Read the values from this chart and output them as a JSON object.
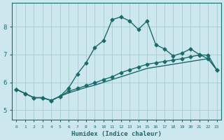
{
  "xlabel": "Humidex (Indice chaleur)",
  "ylabel": "",
  "bg_color": "#cce8ee",
  "grid_color": "#aacccc",
  "line_color": "#1a6b6b",
  "xlim": [
    -0.5,
    23.5
  ],
  "ylim": [
    4.65,
    8.85
  ],
  "xticks": [
    0,
    1,
    2,
    3,
    4,
    5,
    6,
    7,
    8,
    9,
    10,
    11,
    12,
    13,
    14,
    15,
    16,
    17,
    18,
    19,
    20,
    21,
    22,
    23
  ],
  "yticks": [
    5,
    6,
    7,
    8
  ],
  "line1": [
    5.75,
    5.6,
    5.45,
    5.45,
    5.35,
    5.5,
    5.8,
    6.3,
    6.7,
    7.25,
    7.5,
    8.25,
    8.35,
    8.2,
    7.9,
    8.2,
    7.35,
    7.2,
    6.95,
    7.05,
    7.2,
    7.0,
    6.85,
    6.45
  ],
  "line2": [
    5.75,
    5.6,
    5.45,
    5.45,
    5.35,
    5.5,
    5.68,
    5.78,
    5.88,
    5.98,
    6.1,
    6.2,
    6.35,
    6.45,
    6.55,
    6.65,
    6.7,
    6.75,
    6.8,
    6.85,
    6.92,
    6.98,
    6.98,
    6.45
  ],
  "line3": [
    5.75,
    5.6,
    5.45,
    5.45,
    5.35,
    5.5,
    5.62,
    5.72,
    5.82,
    5.9,
    6.0,
    6.1,
    6.2,
    6.3,
    6.4,
    6.5,
    6.55,
    6.6,
    6.65,
    6.7,
    6.75,
    6.8,
    6.85,
    6.45
  ],
  "marker": "D",
  "markersize": 2.5,
  "linewidth": 1.0
}
